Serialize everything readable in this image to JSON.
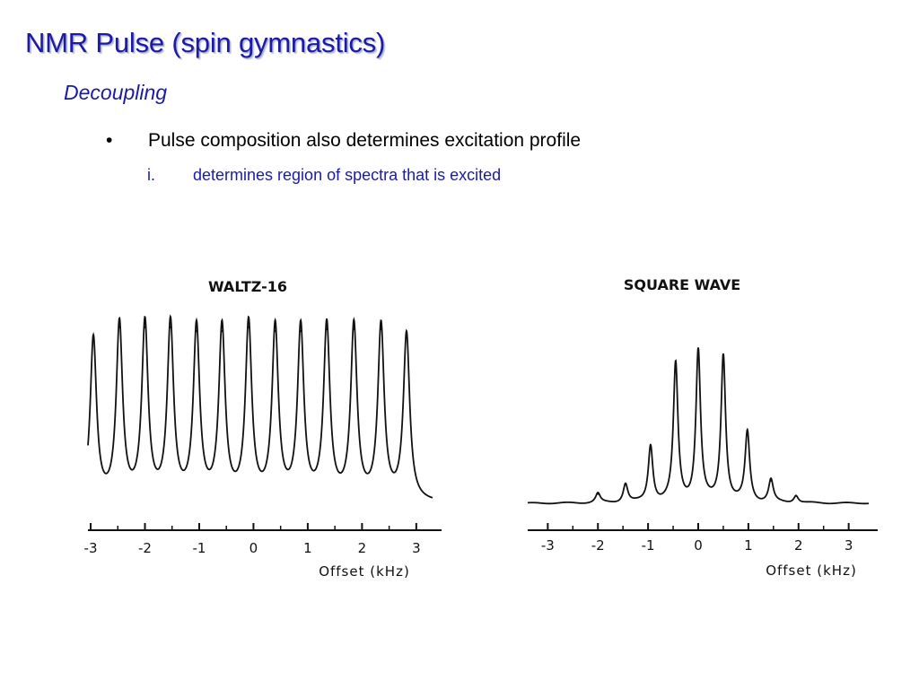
{
  "slide": {
    "title": "NMR Pulse (spin gymnastics)",
    "subtitle": "Decoupling",
    "bullet_marker": "•",
    "bullet": "Pulse composition also determines excitation profile",
    "sub_marker": "i.",
    "sub_bullet": "determines region of spectra that is excited"
  },
  "chart_data": [
    {
      "type": "line",
      "title": "WALTZ-16",
      "xlabel": "Offset (kHz)",
      "ylabel": "",
      "xlim": [
        -3.05,
        3.3
      ],
      "ylim": [
        0,
        1
      ],
      "x_ticks": [
        -3,
        -2,
        -1,
        0,
        1,
        2,
        3
      ],
      "x_tick_labels": [
        "-3",
        "-2",
        "-1",
        "0",
        "1",
        "2",
        "3"
      ],
      "grid": false,
      "peaks": [
        {
          "x": -2.95,
          "height": 0.86
        },
        {
          "x": -2.47,
          "height": 0.93
        },
        {
          "x": -2.0,
          "height": 0.93
        },
        {
          "x": -1.53,
          "height": 0.93
        },
        {
          "x": -1.05,
          "height": 0.91
        },
        {
          "x": -0.58,
          "height": 0.91
        },
        {
          "x": -0.09,
          "height": 0.93
        },
        {
          "x": 0.4,
          "height": 0.91
        },
        {
          "x": 0.87,
          "height": 0.91
        },
        {
          "x": 1.35,
          "height": 0.92
        },
        {
          "x": 1.85,
          "height": 0.92
        },
        {
          "x": 2.35,
          "height": 0.92
        },
        {
          "x": 2.82,
          "height": 0.88
        }
      ],
      "baseline": 0
    },
    {
      "type": "line",
      "title": "SQUARE WAVE",
      "xlabel": "Offset (kHz)",
      "ylabel": "",
      "xlim": [
        -3.4,
        3.4
      ],
      "ylim": [
        0,
        1
      ],
      "x_ticks": [
        -3,
        -2,
        -1,
        0,
        1,
        2,
        3
      ],
      "x_tick_labels": [
        "-3",
        "-2",
        "-1",
        "0",
        "1",
        "2",
        "3"
      ],
      "grid": false,
      "peaks": [
        {
          "x": -2.0,
          "height": 0.05
        },
        {
          "x": -1.45,
          "height": 0.1
        },
        {
          "x": -0.95,
          "height": 0.3
        },
        {
          "x": -0.45,
          "height": 0.73
        },
        {
          "x": 0.0,
          "height": 0.8
        },
        {
          "x": 0.5,
          "height": 0.78
        },
        {
          "x": 0.98,
          "height": 0.37
        },
        {
          "x": 1.45,
          "height": 0.12
        },
        {
          "x": 1.95,
          "height": 0.04
        }
      ],
      "baseline": 0.0
    }
  ]
}
